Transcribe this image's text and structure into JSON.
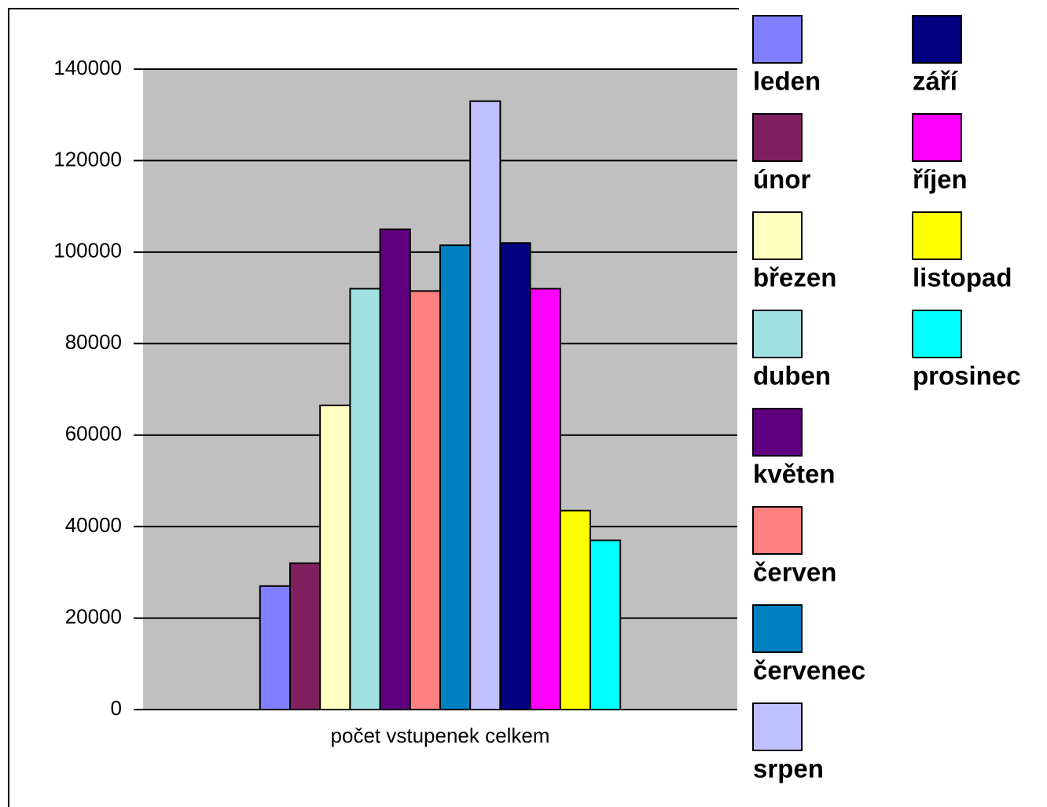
{
  "chart_data": {
    "type": "bar",
    "categories": [
      "počet vstupenek celkem"
    ],
    "series": [
      {
        "name": "leden",
        "color": "#8080ff",
        "values": [
          27000
        ]
      },
      {
        "name": "únor",
        "color": "#7f1f5f",
        "values": [
          32000
        ]
      },
      {
        "name": "březen",
        "color": "#ffffc0",
        "values": [
          66500
        ]
      },
      {
        "name": "duben",
        "color": "#a0e0e0",
        "values": [
          92000
        ]
      },
      {
        "name": "květen",
        "color": "#600080",
        "values": [
          105000
        ]
      },
      {
        "name": "červen",
        "color": "#ff8080",
        "values": [
          91500
        ]
      },
      {
        "name": "červenec",
        "color": "#0080c0",
        "values": [
          101500
        ]
      },
      {
        "name": "srpen",
        "color": "#c0c0ff",
        "values": [
          133000
        ]
      },
      {
        "name": "září",
        "color": "#000080",
        "values": [
          102000
        ]
      },
      {
        "name": "říjen",
        "color": "#ff00ff",
        "values": [
          92000
        ]
      },
      {
        "name": "listopad",
        "color": "#ffff00",
        "values": [
          43500
        ]
      },
      {
        "name": "prosinec",
        "color": "#00ffff",
        "values": [
          37000
        ]
      }
    ],
    "ylim": [
      0,
      140000
    ],
    "yticks": [
      0,
      20000,
      40000,
      60000,
      80000,
      100000,
      120000,
      140000
    ],
    "grid": true,
    "legend": "right"
  }
}
